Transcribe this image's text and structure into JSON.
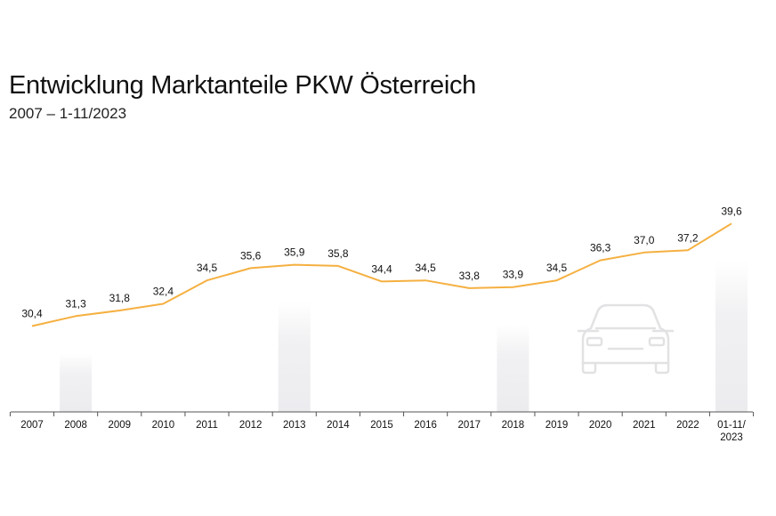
{
  "header": {
    "title": "Entwicklung Marktanteile PKW Österreich",
    "subtitle": "2007 – 1-11/2023"
  },
  "chart_data": {
    "type": "line",
    "title": "Entwicklung Marktanteile PKW Österreich",
    "subtitle": "2007 – 1-11/2023",
    "categories": [
      "2007",
      "2008",
      "2009",
      "2010",
      "2011",
      "2012",
      "2013",
      "2014",
      "2015",
      "2016",
      "2017",
      "2018",
      "2019",
      "2020",
      "2021",
      "2022",
      "01-11/\n2023"
    ],
    "value_labels": [
      "30,4",
      "31,3",
      "31,8",
      "32,4",
      "34,5",
      "35,6",
      "35,9",
      "35,8",
      "34,4",
      "34,5",
      "33,8",
      "33,9",
      "34,5",
      "36,3",
      "37,0",
      "37,2",
      "39,6"
    ],
    "values": [
      30.4,
      31.3,
      31.8,
      32.4,
      34.5,
      35.6,
      35.9,
      35.8,
      34.4,
      34.5,
      33.8,
      33.9,
      34.5,
      36.3,
      37.0,
      37.2,
      39.6
    ],
    "highlighted_categories": [
      "2008",
      "2013",
      "2018",
      "01-11/\n2023"
    ],
    "ylim": [
      22.7,
      40.5
    ],
    "grid": false,
    "colors": {
      "line": "#f5b041",
      "axis": "#555555",
      "highlight": "#f1f1f3",
      "icon": "#e2e2e4"
    },
    "icon": "car-icon"
  }
}
